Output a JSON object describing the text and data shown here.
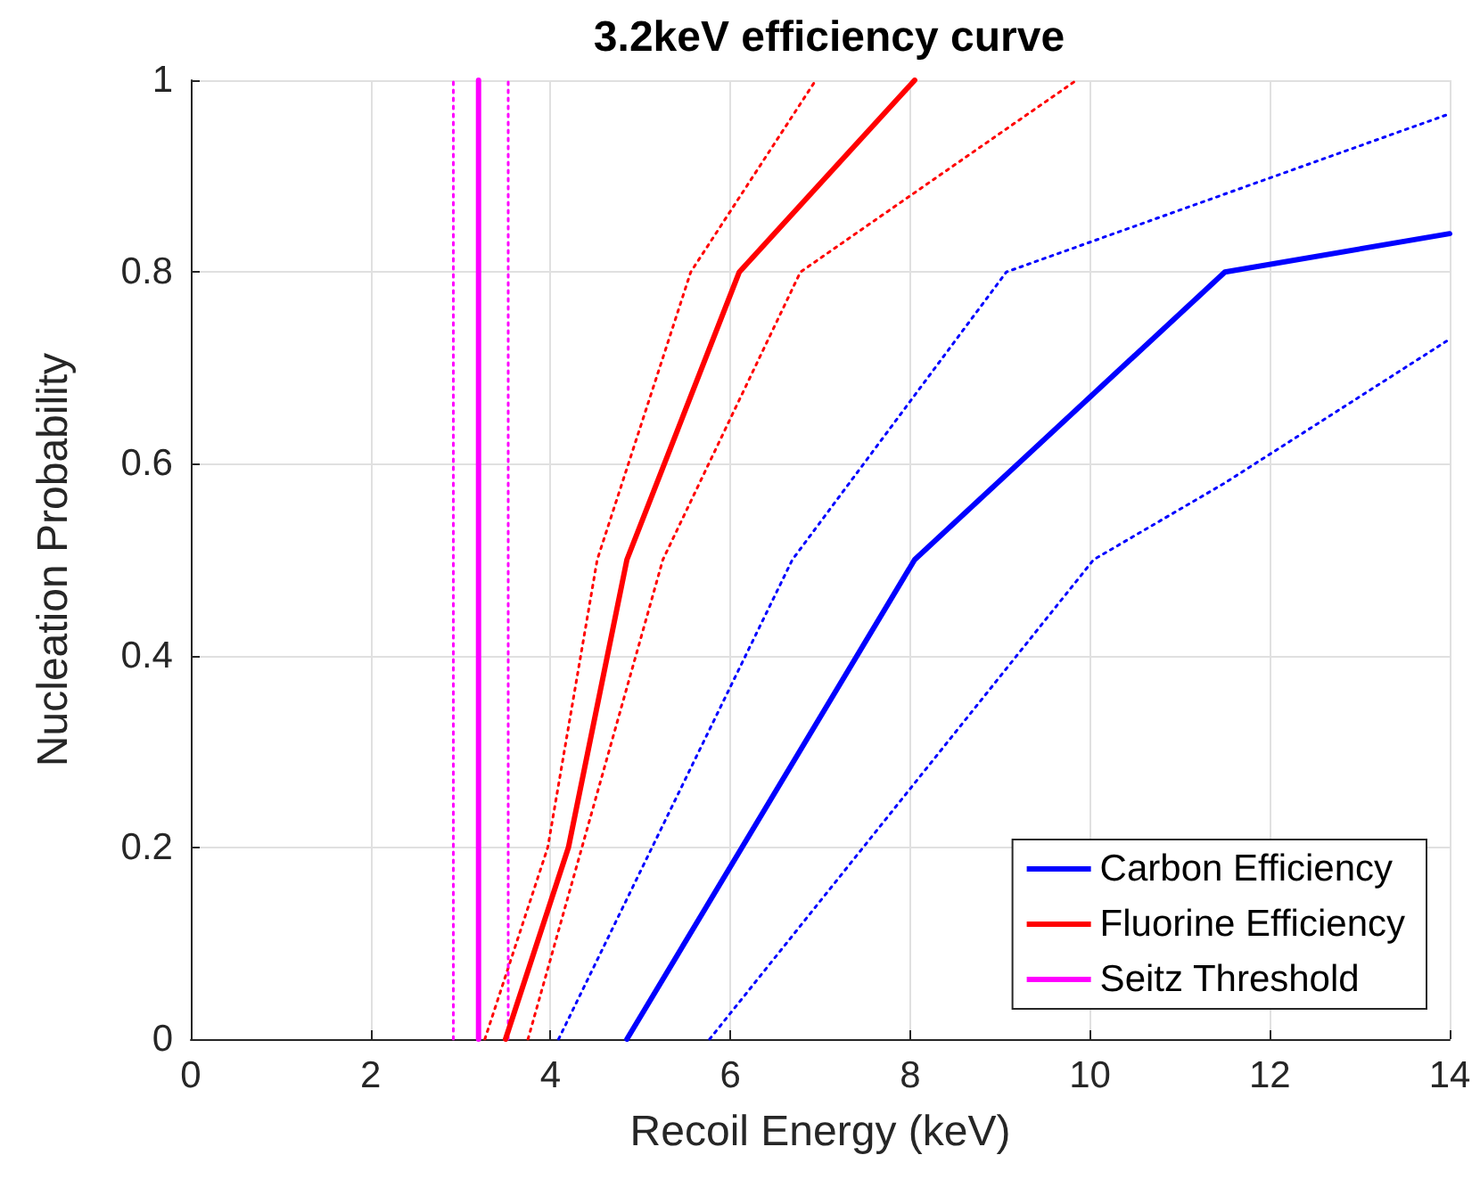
{
  "chart_data": {
    "type": "line",
    "title": "3.2keV efficiency curve",
    "xlabel": "Recoil Energy (keV)",
    "ylabel": "Nucleation Probability",
    "xlim": [
      0,
      14
    ],
    "xticks": [
      0,
      2,
      4,
      6,
      8,
      10,
      12,
      14
    ],
    "ylim": [
      0,
      1
    ],
    "yticks": [
      0,
      0.2,
      0.4,
      0.6,
      0.8,
      1
    ],
    "grid": true,
    "legend": "bottom right",
    "marker": "none",
    "series": [
      {
        "name": "Carbon Efficiency",
        "color": "#0000ff",
        "x": [
          4.85,
          8.05,
          11.5,
          14
        ],
        "values": [
          0,
          0.5,
          0.8,
          0.84
        ],
        "line_style": "solid"
      },
      {
        "name": "Fluorine Efficiency",
        "color": "#ff0000",
        "x": [
          3.5,
          4.2,
          4.85,
          6.1,
          8.05
        ],
        "values": [
          0,
          0.2,
          0.5,
          0.8,
          1
        ],
        "line_style": "solid"
      },
      {
        "name": "Seitz Threshold",
        "color": "#ff00ff",
        "x": [
          3.2,
          3.2
        ],
        "values": [
          0,
          1
        ],
        "line_style": "solid"
      },
      {
        "color": "#0000ff",
        "x": [
          4.09,
          6.69,
          9.07,
          14
        ],
        "values": [
          0,
          0.5,
          0.8,
          0.965
        ],
        "line_style": "dotted"
      },
      {
        "color": "#0000ff",
        "x": [
          5.77,
          10.04,
          11.5,
          14
        ],
        "values": [
          0,
          0.5,
          0.58,
          0.73
        ],
        "line_style": "dotted"
      },
      {
        "color": "#ff0000",
        "x": [
          3.27,
          3.97,
          4.52,
          5.56,
          6.95
        ],
        "values": [
          0,
          0.2,
          0.5,
          0.8,
          1
        ],
        "line_style": "dotted"
      },
      {
        "color": "#ff0000",
        "x": [
          3.75,
          4.35,
          5.25,
          6.78,
          9.85
        ],
        "values": [
          0,
          0.2,
          0.5,
          0.8,
          1
        ],
        "line_style": "dotted"
      },
      {
        "color": "#ff00ff",
        "x": [
          2.92,
          2.92
        ],
        "values": [
          0,
          1
        ],
        "line_style": "dotted"
      },
      {
        "color": "#ff00ff",
        "x": [
          3.53,
          3.53
        ],
        "values": [
          0,
          1
        ],
        "line_style": "dotted"
      }
    ]
  }
}
